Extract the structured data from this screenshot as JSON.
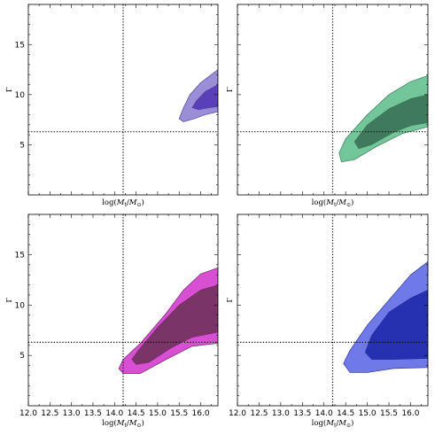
{
  "figure": {
    "xlabel": "log(M_t/M_⊙)",
    "ylabel": "Γ",
    "xlim": [
      12.0,
      16.4
    ],
    "ylim": [
      0,
      19
    ],
    "xticks": [
      "12.0",
      "12.5",
      "13.0",
      "13.5",
      "14.0",
      "14.5",
      "15.0",
      "15.5",
      "16.0"
    ],
    "yticks": [
      "5",
      "10",
      "15"
    ],
    "vline_x": 14.2,
    "hline_y": 6.3,
    "grid": false
  },
  "chart_data": [
    {
      "type": "area",
      "panel": "top-left",
      "show_x_ticklabels": false,
      "show_y_ticklabels": true,
      "colors": {
        "outer": "#9a8ed6",
        "inner": "#5a40b8",
        "edge": "#3a2a8a"
      },
      "outer_contour": [
        [
          16.4,
          12.5
        ],
        [
          16.0,
          11.2
        ],
        [
          15.75,
          10.0
        ],
        [
          15.6,
          8.7
        ],
        [
          15.5,
          7.6
        ],
        [
          15.6,
          7.3
        ],
        [
          15.85,
          7.6
        ],
        [
          16.1,
          8.0
        ],
        [
          16.4,
          8.3
        ]
      ],
      "inner_contour": [
        [
          16.4,
          11.0
        ],
        [
          16.1,
          10.3
        ],
        [
          15.9,
          9.4
        ],
        [
          15.8,
          8.7
        ],
        [
          15.95,
          8.5
        ],
        [
          16.2,
          8.7
        ],
        [
          16.4,
          8.8
        ]
      ]
    },
    {
      "type": "area",
      "panel": "top-right",
      "show_x_ticklabels": false,
      "show_y_ticklabels": false,
      "colors": {
        "outer": "#72c69a",
        "inner": "#3f7a5e",
        "edge": "#2f6a4a"
      },
      "outer_contour": [
        [
          16.4,
          11.9
        ],
        [
          16.0,
          11.3
        ],
        [
          15.5,
          10.0
        ],
        [
          15.0,
          8.0
        ],
        [
          14.5,
          5.6
        ],
        [
          14.35,
          4.2
        ],
        [
          14.4,
          3.3
        ],
        [
          14.7,
          3.5
        ],
        [
          15.2,
          4.8
        ],
        [
          15.8,
          6.1
        ],
        [
          16.4,
          6.8
        ]
      ],
      "inner_contour": [
        [
          16.4,
          10.0
        ],
        [
          16.0,
          9.6
        ],
        [
          15.5,
          8.6
        ],
        [
          15.0,
          7.0
        ],
        [
          14.7,
          5.3
        ],
        [
          14.8,
          4.6
        ],
        [
          15.1,
          5.0
        ],
        [
          15.6,
          6.2
        ],
        [
          16.0,
          6.9
        ],
        [
          16.4,
          7.2
        ]
      ]
    },
    {
      "type": "area",
      "panel": "bottom-left",
      "show_x_ticklabels": true,
      "show_y_ticklabels": true,
      "colors": {
        "outer": "#d94fd4",
        "inner": "#7a3468",
        "edge": "#5a2050"
      },
      "outer_contour": [
        [
          16.4,
          13.7
        ],
        [
          16.0,
          13.1
        ],
        [
          15.6,
          11.5
        ],
        [
          15.2,
          9.2
        ],
        [
          14.6,
          6.2
        ],
        [
          14.2,
          4.6
        ],
        [
          14.1,
          3.7
        ],
        [
          14.2,
          3.2
        ],
        [
          14.6,
          3.2
        ],
        [
          15.2,
          4.6
        ],
        [
          15.8,
          5.9
        ],
        [
          16.4,
          6.2
        ]
      ],
      "inner_contour": [
        [
          16.4,
          12.0
        ],
        [
          16.0,
          11.5
        ],
        [
          15.5,
          10.0
        ],
        [
          15.0,
          7.8
        ],
        [
          14.55,
          5.5
        ],
        [
          14.4,
          4.6
        ],
        [
          14.5,
          4.1
        ],
        [
          14.8,
          4.3
        ],
        [
          15.3,
          5.7
        ],
        [
          15.8,
          6.8
        ],
        [
          16.4,
          7.3
        ]
      ]
    },
    {
      "type": "area",
      "panel": "bottom-right",
      "show_x_ticklabels": true,
      "show_y_ticklabels": false,
      "colors": {
        "outer": "#6f7ae8",
        "inner": "#2531b0",
        "edge": "#1a2280"
      },
      "outer_contour": [
        [
          16.4,
          14.3
        ],
        [
          16.0,
          13.0
        ],
        [
          15.5,
          10.5
        ],
        [
          15.0,
          8.0
        ],
        [
          14.6,
          5.5
        ],
        [
          14.45,
          4.2
        ],
        [
          14.6,
          3.3
        ],
        [
          15.0,
          3.3
        ],
        [
          15.6,
          3.7
        ],
        [
          16.4,
          3.8
        ]
      ],
      "inner_contour": [
        [
          16.4,
          11.5
        ],
        [
          16.0,
          10.7
        ],
        [
          15.5,
          9.3
        ],
        [
          15.1,
          7.0
        ],
        [
          14.95,
          5.3
        ],
        [
          15.1,
          4.6
        ],
        [
          15.6,
          4.6
        ],
        [
          16.4,
          4.7
        ]
      ]
    }
  ]
}
